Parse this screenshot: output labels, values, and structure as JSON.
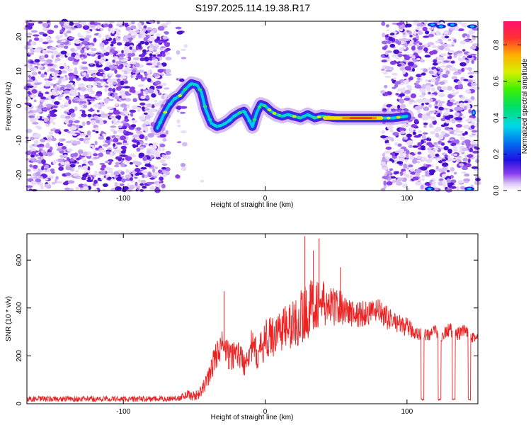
{
  "title": "S197.2025.114.19.38.R17",
  "colors": {
    "snr_line": "#ee2222",
    "frame": "#000000",
    "background": "#ffffff"
  },
  "chart_data": [
    {
      "type": "heatmap",
      "xlabel": "Height of straight line (km)",
      "ylabel": "Frequency (Hz)",
      "xlim": [
        -168,
        150
      ],
      "ylim": [
        -24.5,
        24.5
      ],
      "xticks": [
        -100,
        0,
        100
      ],
      "yticks": [
        -20,
        -10,
        0,
        10,
        20
      ],
      "colorbar": {
        "label": "Normalized spectral amplitude",
        "range": [
          0,
          0.93
        ],
        "ticks": [
          "0.0",
          "0.2",
          "0.4",
          "0.6",
          "0.8"
        ],
        "colormap": "rainbow (violet to red)"
      },
      "ridge": {
        "name": "",
        "x": [
          -76,
          -72,
          -68,
          -64,
          -60,
          -56,
          -52,
          -48,
          -45,
          -42,
          -38,
          -34,
          -30,
          -26,
          -22,
          -18,
          -15,
          -12,
          -9,
          -6,
          -3,
          0,
          4,
          8,
          12,
          16,
          20,
          25,
          30,
          35,
          40,
          50,
          60,
          70,
          80,
          90,
          100
        ],
        "y": [
          -6.5,
          -3,
          0,
          2,
          3,
          5,
          6.5,
          6,
          4,
          -1,
          -5,
          -6,
          -5.5,
          -4.5,
          -3,
          -2,
          -1.5,
          -3.5,
          -6,
          -2,
          0.5,
          0,
          -1.5,
          -2.5,
          -3,
          -2.5,
          -3,
          -3.5,
          -2.5,
          -3.5,
          -3,
          -3.5,
          -3.5,
          -3.5,
          -3.5,
          -3.5,
          -3
        ]
      },
      "intensity_note": "amplitude peaks near 0.93 around x 45–80 km, y -3.5 Hz"
    },
    {
      "type": "line",
      "xlabel": "Height of straight line (km)",
      "ylabel": "SNR (10 * v/v)",
      "xlim": [
        -168,
        150
      ],
      "ylim": [
        0,
        710
      ],
      "xticks": [
        -100,
        0,
        100
      ],
      "yticks": [
        0,
        200,
        400,
        600
      ],
      "series": [
        {
          "name": "",
          "x": [
            -168,
            -120,
            -70,
            -60,
            -55,
            -50,
            -45,
            -40,
            -35,
            -30,
            -25,
            -20,
            -15,
            -10,
            -5,
            0,
            5,
            10,
            15,
            20,
            25,
            30,
            35,
            40,
            45,
            50,
            55,
            60,
            65,
            70,
            75,
            80,
            85,
            90,
            95,
            100,
            105,
            110,
            115,
            120,
            125,
            130,
            135,
            140,
            145,
            150
          ],
          "y": [
            20,
            20,
            20,
            25,
            40,
            30,
            50,
            110,
            200,
            250,
            190,
            220,
            170,
            240,
            200,
            270,
            280,
            310,
            320,
            330,
            360,
            390,
            420,
            420,
            400,
            410,
            400,
            380,
            370,
            380,
            380,
            390,
            360,
            350,
            330,
            320,
            300,
            290,
            290,
            300,
            285,
            310,
            290,
            300,
            290,
            270
          ],
          "spread": [
            12,
            12,
            12,
            12,
            20,
            20,
            25,
            40,
            60,
            60,
            60,
            60,
            60,
            70,
            70,
            80,
            90,
            90,
            100,
            110,
            120,
            120,
            110,
            100,
            90,
            80,
            70,
            60,
            60,
            60,
            50,
            50,
            50,
            40,
            40,
            40,
            30,
            30,
            30,
            30,
            30,
            30,
            30,
            30,
            30,
            30
          ]
        }
      ],
      "dropouts": [
        {
          "x": [
            110,
            112
          ],
          "y": 15
        },
        {
          "x": [
            122,
            124
          ],
          "y": 15
        },
        {
          "x": [
            132,
            134
          ],
          "y": 15
        },
        {
          "x": [
            143,
            145
          ],
          "y": 15
        }
      ],
      "spikes": [
        {
          "x": -29,
          "y": 470
        },
        {
          "x": 28,
          "y": 700
        },
        {
          "x": 34,
          "y": 640
        },
        {
          "x": 38,
          "y": 690
        },
        {
          "x": 53,
          "y": 570
        }
      ]
    }
  ]
}
